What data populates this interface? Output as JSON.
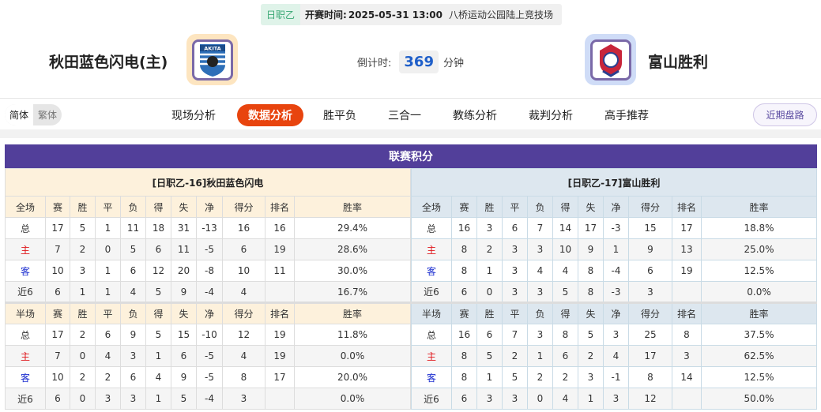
{
  "match": {
    "league": "日职乙",
    "kickoff_label": "开赛时间:",
    "kickoff_time": "2025-05-31 13:00",
    "venue": "八桥运动公园陆上竞技场",
    "home_team": "秋田蓝色闪电(主)",
    "away_team": "富山胜利",
    "countdown_label": "倒计时:",
    "countdown_value": "369",
    "countdown_unit": "分钟",
    "home_logo_text": "AKITA",
    "home_logo_color": "#fde5c0",
    "away_logo_color": "#cfdcf7"
  },
  "nav": {
    "lang": [
      "简体",
      "繁体"
    ],
    "tabs": [
      "现场分析",
      "数据分析",
      "胜平负",
      "三合一",
      "教练分析",
      "裁判分析",
      "高手推荐"
    ],
    "active_tab": "数据分析",
    "recent_button": "近期盘路"
  },
  "standings": {
    "title": "联赛积分",
    "full_header": [
      "全场",
      "赛",
      "胜",
      "平",
      "负",
      "得",
      "失",
      "净",
      "得分",
      "排名",
      "胜率"
    ],
    "half_header": [
      "半场",
      "赛",
      "胜",
      "平",
      "负",
      "得",
      "失",
      "净",
      "得分",
      "排名",
      "胜率"
    ],
    "home": {
      "title": "[日职乙-16]秋田蓝色闪电",
      "full": [
        [
          "总",
          "17",
          "5",
          "1",
          "11",
          "18",
          "31",
          "-13",
          "16",
          "16",
          "29.4%"
        ],
        [
          "主",
          "7",
          "2",
          "0",
          "5",
          "6",
          "11",
          "-5",
          "6",
          "19",
          "28.6%"
        ],
        [
          "客",
          "10",
          "3",
          "1",
          "6",
          "12",
          "20",
          "-8",
          "10",
          "11",
          "30.0%"
        ],
        [
          "近6",
          "6",
          "1",
          "1",
          "4",
          "5",
          "9",
          "-4",
          "4",
          "",
          "16.7%"
        ]
      ],
      "half": [
        [
          "总",
          "17",
          "2",
          "6",
          "9",
          "5",
          "15",
          "-10",
          "12",
          "19",
          "11.8%"
        ],
        [
          "主",
          "7",
          "0",
          "4",
          "3",
          "1",
          "6",
          "-5",
          "4",
          "19",
          "0.0%"
        ],
        [
          "客",
          "10",
          "2",
          "2",
          "6",
          "4",
          "9",
          "-5",
          "8",
          "17",
          "20.0%"
        ],
        [
          "近6",
          "6",
          "0",
          "3",
          "3",
          "1",
          "5",
          "-4",
          "3",
          "",
          "0.0%"
        ]
      ]
    },
    "away": {
      "title": "[日职乙-17]富山胜利",
      "full": [
        [
          "总",
          "16",
          "3",
          "6",
          "7",
          "14",
          "17",
          "-3",
          "15",
          "17",
          "18.8%"
        ],
        [
          "主",
          "8",
          "2",
          "3",
          "3",
          "10",
          "9",
          "1",
          "9",
          "13",
          "25.0%"
        ],
        [
          "客",
          "8",
          "1",
          "3",
          "4",
          "4",
          "8",
          "-4",
          "6",
          "19",
          "12.5%"
        ],
        [
          "近6",
          "6",
          "0",
          "3",
          "3",
          "5",
          "8",
          "-3",
          "3",
          "",
          "0.0%"
        ]
      ],
      "half": [
        [
          "总",
          "16",
          "6",
          "7",
          "3",
          "8",
          "5",
          "3",
          "25",
          "8",
          "37.5%"
        ],
        [
          "主",
          "8",
          "5",
          "2",
          "1",
          "6",
          "2",
          "4",
          "17",
          "3",
          "62.5%"
        ],
        [
          "客",
          "8",
          "1",
          "5",
          "2",
          "2",
          "3",
          "-1",
          "8",
          "14",
          "12.5%"
        ],
        [
          "近6",
          "6",
          "3",
          "3",
          "0",
          "4",
          "1",
          "3",
          "12",
          "",
          "50.0%"
        ]
      ]
    }
  }
}
